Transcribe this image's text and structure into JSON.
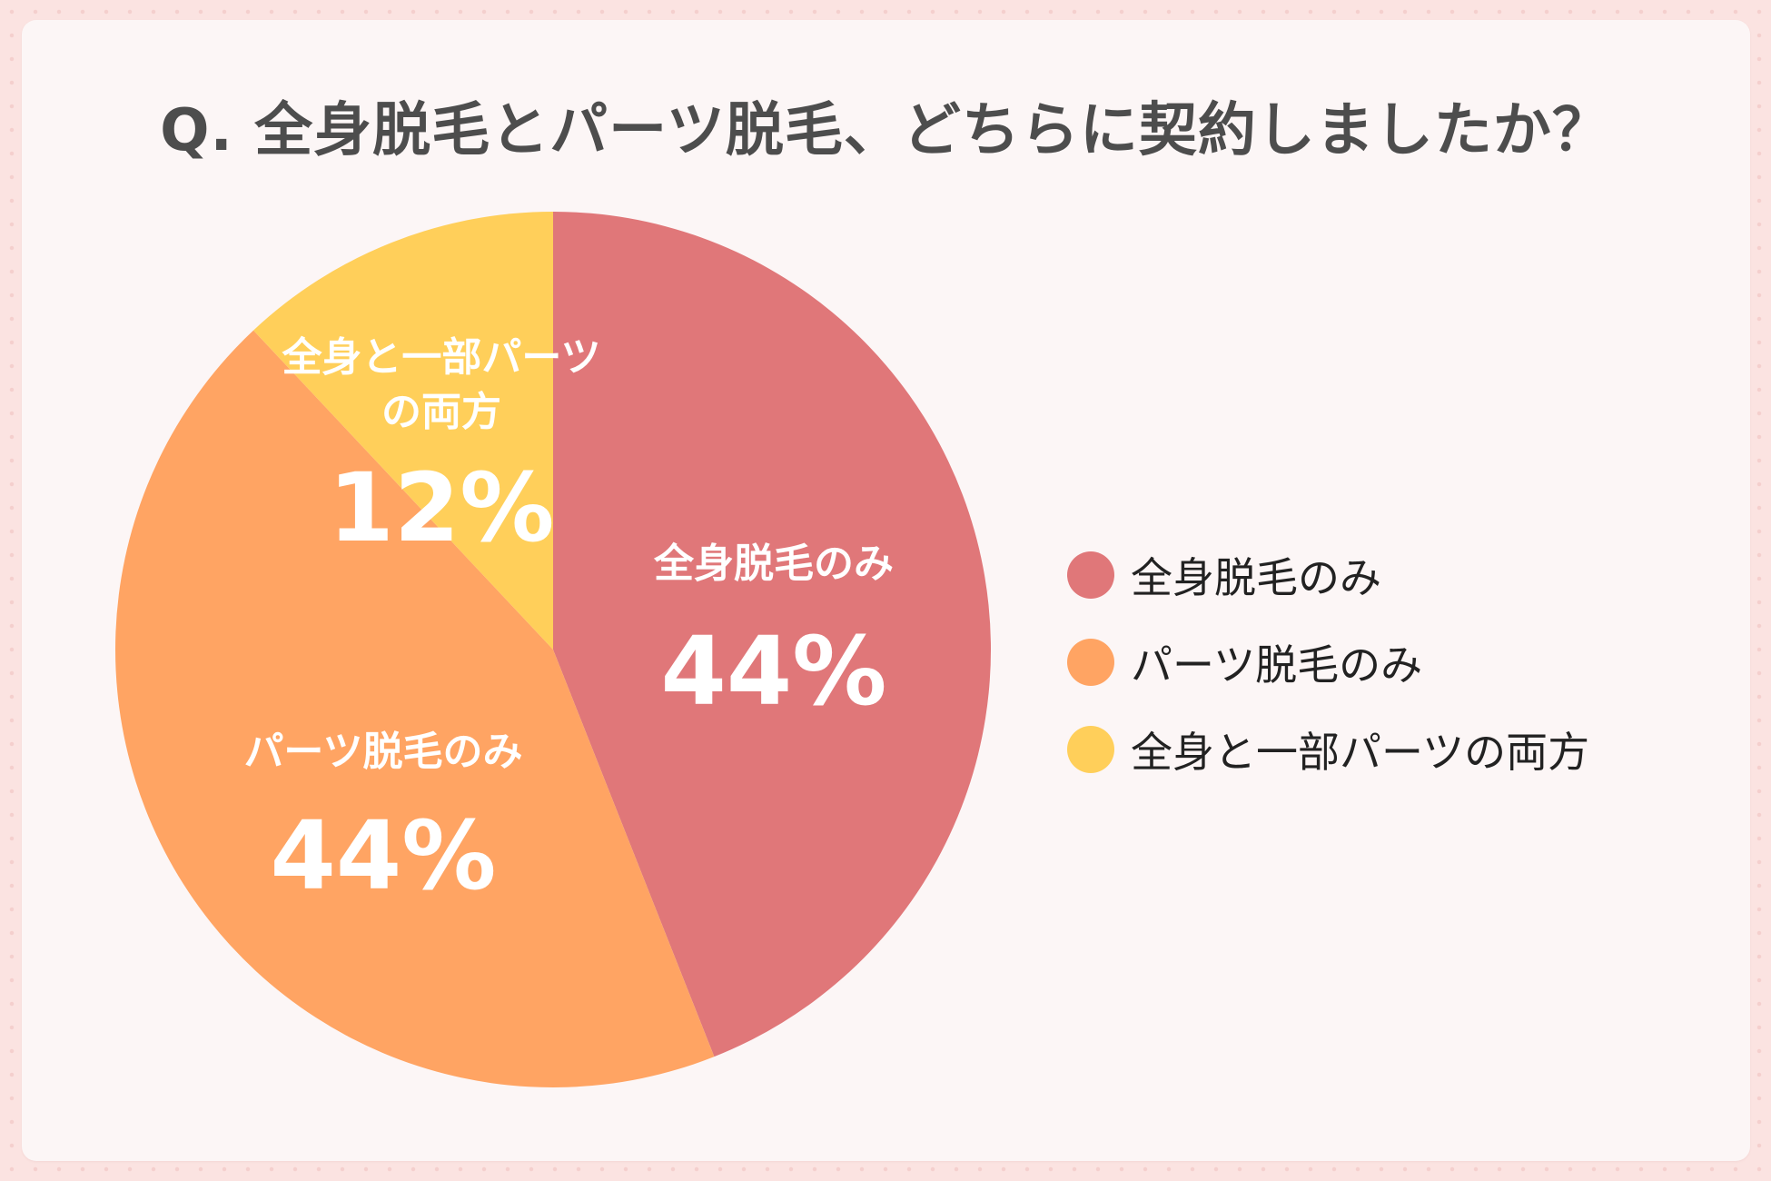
{
  "title": "Q. 全身脱毛とパーツ脱毛、どちらに契約しましたか？",
  "chart_data": {
    "type": "pie",
    "title": "Q. 全身脱毛とパーツ脱毛、どちらに契約しましたか？",
    "slices": [
      {
        "label": "全身脱毛のみ",
        "value": 44,
        "value_text": "44%",
        "color": "#e07779"
      },
      {
        "label": "パーツ脱毛のみ",
        "value": 44,
        "value_text": "44%",
        "color": "#ffa463"
      },
      {
        "label": "全身と一部パーツの両方",
        "value": 12,
        "value_text": "12%",
        "color": "#ffcf5a"
      }
    ],
    "start_angle_deg": 0,
    "direction": "clockwise",
    "legend_position": "right"
  },
  "legend": [
    {
      "label": "全身脱毛のみ",
      "color": "#e07779"
    },
    {
      "label": "パーツ脱毛のみ",
      "color": "#ffa463"
    },
    {
      "label": "全身と一部パーツの両方",
      "color": "#ffcf5a"
    }
  ],
  "pie_labels": [
    {
      "lines": [
        "全身脱毛のみ"
      ],
      "value_text": "44%"
    },
    {
      "lines": [
        "パーツ脱毛のみ"
      ],
      "value_text": "44%"
    },
    {
      "lines": [
        "全身と一部パーツ",
        "の両方"
      ],
      "value_text": "12%"
    }
  ]
}
